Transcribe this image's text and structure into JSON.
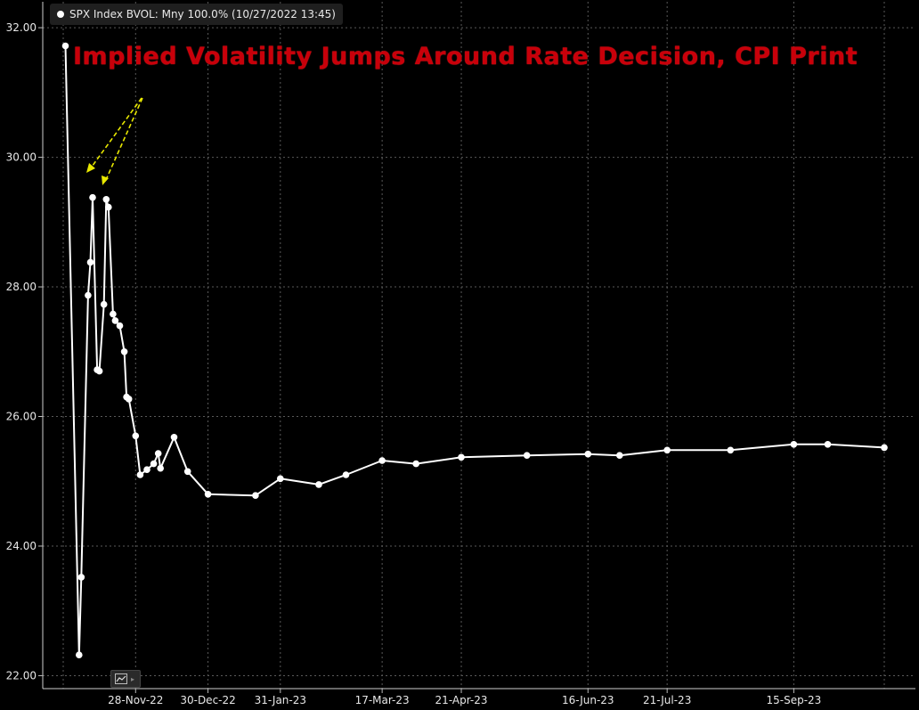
{
  "legend": {
    "label": "SPX Index BVOL: Mny 100.0% (10/27/2022 13:45)"
  },
  "title": "Implied Volatility Jumps Around Rate Decision, CPI Print",
  "colors": {
    "background": "#000000",
    "line": "#ffffff",
    "title": "#c8000a",
    "arrow": "#e8e800",
    "grid": "#5a5a5a"
  },
  "toolbar": {
    "icon": "line-chart-icon"
  },
  "chart_data": {
    "type": "line",
    "title": "Implied Volatility Jumps Around Rate Decision, CPI Print",
    "xlabel": "",
    "ylabel": "",
    "x_range": [
      "2022-10-27",
      "2023-10-25"
    ],
    "ylim": [
      21.8,
      32.4
    ],
    "y_ticks": [
      22,
      24,
      26,
      28,
      30,
      32
    ],
    "y_tick_labels": [
      "22.00",
      "24.00",
      "26.00",
      "28.00",
      "30.00",
      "32.00"
    ],
    "x_ticks": [
      "2022-11-28",
      "2022-12-30",
      "2023-01-31",
      "2023-03-17",
      "2023-04-21",
      "2023-06-16",
      "2023-07-21",
      "2023-09-15"
    ],
    "x_tick_labels": [
      "28-Nov-22",
      "30-Dec-22",
      "31-Jan-23",
      "17-Mar-23",
      "21-Apr-23",
      "16-Jun-23",
      "21-Jul-23",
      "15-Sep-23"
    ],
    "grid": true,
    "legend": "top-left",
    "series": [
      {
        "name": "SPX Index BVOL: Mny 100.0% (10/27/2022 13:45)",
        "color": "#ffffff",
        "x": [
          "2022-10-28",
          "2022-11-03",
          "2022-11-04",
          "2022-11-07",
          "2022-11-08",
          "2022-11-09",
          "2022-11-11",
          "2022-11-12",
          "2022-11-14",
          "2022-11-15",
          "2022-11-16",
          "2022-11-18",
          "2022-11-19",
          "2022-11-21",
          "2022-11-23",
          "2022-11-24",
          "2022-11-25",
          "2022-11-28",
          "2022-11-30",
          "2022-12-03",
          "2022-12-06",
          "2022-12-08",
          "2022-12-09",
          "2022-12-15",
          "2022-12-21",
          "2022-12-30",
          "2023-01-20",
          "2023-01-31",
          "2023-02-17",
          "2023-03-01",
          "2023-03-17",
          "2023-04-01",
          "2023-04-21",
          "2023-05-20",
          "2023-06-16",
          "2023-06-30",
          "2023-07-21",
          "2023-08-18",
          "2023-09-15",
          "2023-09-30",
          "2023-10-25"
        ],
        "values": [
          31.72,
          22.32,
          23.52,
          27.87,
          28.38,
          29.38,
          26.72,
          26.7,
          27.73,
          29.35,
          29.23,
          27.58,
          27.48,
          27.4,
          27.0,
          26.3,
          26.27,
          25.7,
          25.1,
          25.18,
          25.27,
          25.43,
          25.2,
          25.68,
          25.15,
          24.8,
          24.78,
          25.04,
          24.95,
          25.1,
          25.32,
          25.27,
          25.37,
          25.4,
          25.42,
          25.4,
          25.48,
          25.48,
          25.57,
          25.57,
          25.52
        ]
      }
    ]
  }
}
